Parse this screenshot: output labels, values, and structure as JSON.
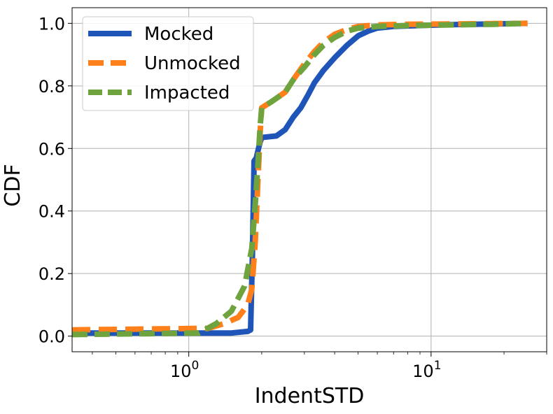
{
  "chart_data": {
    "type": "line",
    "title": "",
    "xlabel": "IndentSTD",
    "ylabel": "CDF",
    "xscale": "log",
    "xlim": [
      0.33,
      30
    ],
    "ylim": [
      -0.05,
      1.05
    ],
    "grid": true,
    "legend_position": "top-left",
    "x_ticks": [
      {
        "value": 1,
        "base": "10",
        "exp": "0"
      },
      {
        "value": 10,
        "base": "10",
        "exp": "1"
      }
    ],
    "y_ticks": [
      {
        "value": 0.0,
        "label": "0.0"
      },
      {
        "value": 0.2,
        "label": "0.2"
      },
      {
        "value": 0.4,
        "label": "0.4"
      },
      {
        "value": 0.6,
        "label": "0.6"
      },
      {
        "value": 0.8,
        "label": "0.8"
      },
      {
        "value": 1.0,
        "label": "1.0"
      }
    ],
    "series": [
      {
        "name": "Mocked",
        "color": "#1f55b8",
        "style": "solid",
        "x": [
          0.33,
          1.5,
          1.75,
          1.8,
          1.83,
          1.86,
          1.9,
          1.94,
          1.97,
          2.0,
          2.3,
          2.5,
          2.7,
          2.9,
          3.1,
          3.3,
          3.6,
          4.0,
          4.5,
          5.0,
          5.5,
          6.0,
          7.0,
          9.0,
          12.0,
          18.0,
          25.0
        ],
        "y": [
          0.01,
          0.01,
          0.015,
          0.02,
          0.25,
          0.56,
          0.57,
          0.6,
          0.62,
          0.635,
          0.64,
          0.66,
          0.7,
          0.73,
          0.77,
          0.81,
          0.85,
          0.89,
          0.93,
          0.96,
          0.975,
          0.985,
          0.99,
          0.993,
          0.996,
          0.998,
          1.0
        ]
      },
      {
        "name": "Unmocked",
        "color": "#ff7f1a",
        "style": "dashed",
        "x": [
          0.33,
          1.2,
          1.4,
          1.6,
          1.75,
          1.82,
          1.88,
          1.93,
          1.97,
          2.0,
          2.2,
          2.5,
          2.7,
          3.0,
          3.3,
          3.6,
          4.0,
          4.5,
          5.0,
          6.0,
          8.0,
          12.0,
          18.0,
          25.0
        ],
        "y": [
          0.02,
          0.025,
          0.04,
          0.06,
          0.1,
          0.15,
          0.3,
          0.5,
          0.65,
          0.73,
          0.75,
          0.78,
          0.82,
          0.87,
          0.91,
          0.94,
          0.965,
          0.98,
          0.99,
          0.995,
          0.997,
          0.998,
          0.999,
          1.0
        ]
      },
      {
        "name": "Impacted",
        "color": "#6ea33d",
        "style": "dashed",
        "x": [
          0.33,
          1.1,
          1.3,
          1.5,
          1.7,
          1.82,
          1.88,
          1.93,
          1.97,
          2.0,
          2.2,
          2.5,
          2.7,
          3.0,
          3.3,
          3.6,
          4.0,
          4.5,
          5.0,
          6.0,
          8.0,
          12.0,
          18.0,
          25.0
        ],
        "y": [
          0.005,
          0.01,
          0.04,
          0.08,
          0.16,
          0.28,
          0.42,
          0.55,
          0.67,
          0.73,
          0.75,
          0.78,
          0.82,
          0.86,
          0.9,
          0.93,
          0.955,
          0.975,
          0.985,
          0.99,
          0.993,
          0.995,
          0.997,
          1.0
        ]
      }
    ]
  }
}
